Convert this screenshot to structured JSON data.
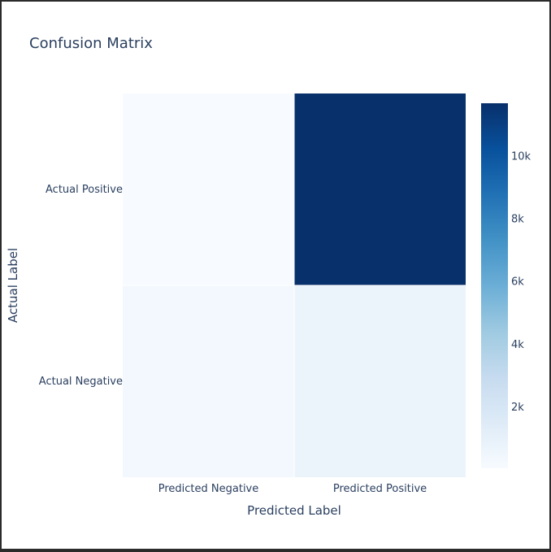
{
  "chart_data": {
    "type": "heatmap",
    "title": "Confusion Matrix",
    "xlabel": "Predicted Label",
    "ylabel": "Actual Label",
    "x_categories": [
      "Predicted Negative",
      "Predicted Positive"
    ],
    "y_categories": [
      "Actual Positive",
      "Actual Negative"
    ],
    "z": [
      [
        50,
        11700
      ],
      [
        300,
        700
      ]
    ],
    "colorscale": "Blues",
    "colorbar": {
      "range": [
        50,
        11700
      ],
      "ticks": [
        2000,
        4000,
        6000,
        8000,
        10000
      ],
      "tick_labels": [
        "2k",
        "4k",
        "6k",
        "8k",
        "10k"
      ]
    }
  }
}
